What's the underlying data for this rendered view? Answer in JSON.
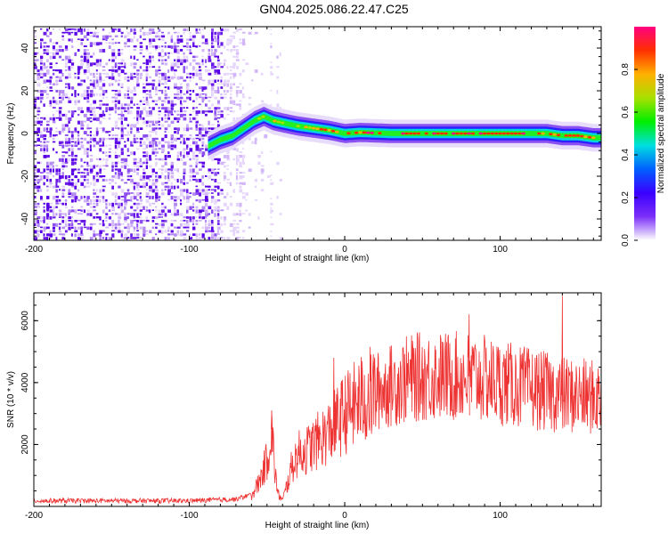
{
  "title": "GN04.2025.086.22.47.C25",
  "chart_data": [
    {
      "type": "heatmap",
      "xlabel": "Height of straight line (km)",
      "ylabel": "Frequency (Hz)",
      "xlim": [
        -200,
        165
      ],
      "ylim": [
        -50,
        50
      ],
      "xticks": [
        -200,
        -100,
        0,
        100
      ],
      "yticks": [
        -40,
        -20,
        0,
        20,
        40
      ],
      "grid": false,
      "colorbar": {
        "label": "Normalized spectral amplitude",
        "range": [
          0,
          1
        ],
        "ticks": [
          "0.0",
          "0.2",
          "0.4",
          "0.6",
          "0.8"
        ],
        "colormap": [
          "#ffffff",
          "#7b2ff7",
          "#3a00ff",
          "#0060ff",
          "#00e0e0",
          "#00ee00",
          "#a8e000",
          "#ffb000",
          "#ff3000",
          "#ff0080"
        ]
      },
      "ridge": {
        "x": [
          -88,
          -80,
          -72,
          -64,
          -58,
          -52,
          -46,
          -40,
          -30,
          -20,
          -10,
          0,
          10,
          30,
          60,
          90,
          110,
          120,
          130,
          140,
          150,
          160,
          165
        ],
        "y": [
          -6,
          -3,
          -1,
          3,
          6,
          8,
          6,
          5,
          3.5,
          2.5,
          1.5,
          0,
          0.5,
          0,
          0,
          0,
          0,
          0,
          0,
          -1,
          -1,
          -2,
          -2
        ]
      },
      "noise_region": {
        "x_range": [
          -200,
          -65
        ],
        "y_range": [
          -50,
          50
        ]
      }
    },
    {
      "type": "line",
      "xlabel": "Height of straight line (km)",
      "ylabel": "SNR (10 * v/v)",
      "xlim": [
        -200,
        165
      ],
      "ylim": [
        0,
        6900
      ],
      "xticks": [
        -200,
        -100,
        0,
        100
      ],
      "yticks": [
        2000,
        4000,
        6000
      ],
      "grid": false,
      "color": "#ee3333",
      "envelope": {
        "x": [
          -200,
          -150,
          -100,
          -70,
          -60,
          -55,
          -50,
          -47,
          -45,
          -43,
          -40,
          -37,
          -34,
          -30,
          -25,
          -20,
          -10,
          0,
          10,
          20,
          30,
          40,
          50,
          60,
          80,
          100,
          120,
          140,
          165
        ],
        "y": [
          150,
          150,
          150,
          200,
          350,
          800,
          1500,
          2500,
          1200,
          400,
          200,
          700,
          1300,
          1700,
          1800,
          2000,
          2400,
          3000,
          3400,
          3700,
          3900,
          4100,
          4200,
          4200,
          4200,
          4000,
          3800,
          3600,
          3500
        ]
      },
      "spikes": [
        {
          "x": -47,
          "y": 3000
        },
        {
          "x": -7,
          "y": 4800
        },
        {
          "x": 80,
          "y": 6200
        },
        {
          "x": 140,
          "y": 6800
        }
      ]
    }
  ]
}
